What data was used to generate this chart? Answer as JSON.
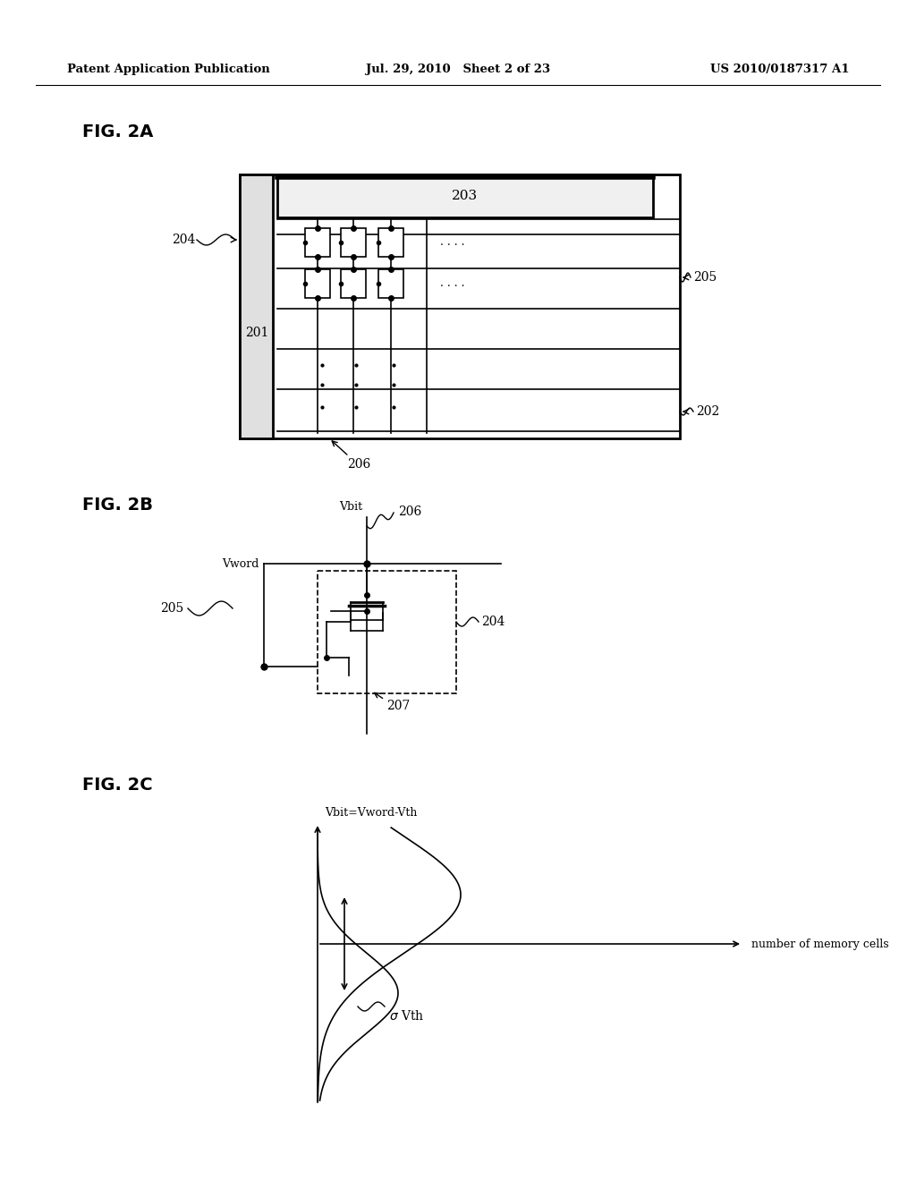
{
  "bg_color": "#ffffff",
  "header_left": "Patent Application Publication",
  "header_center": "Jul. 29, 2010   Sheet 2 of 23",
  "header_right": "US 2010/0187317 A1",
  "fig2a_label": "FIG. 2A",
  "fig2b_label": "FIG. 2B",
  "fig2c_label": "FIG. 2C",
  "line_color": "#000000",
  "lw": 1.2,
  "lw2": 2.0
}
